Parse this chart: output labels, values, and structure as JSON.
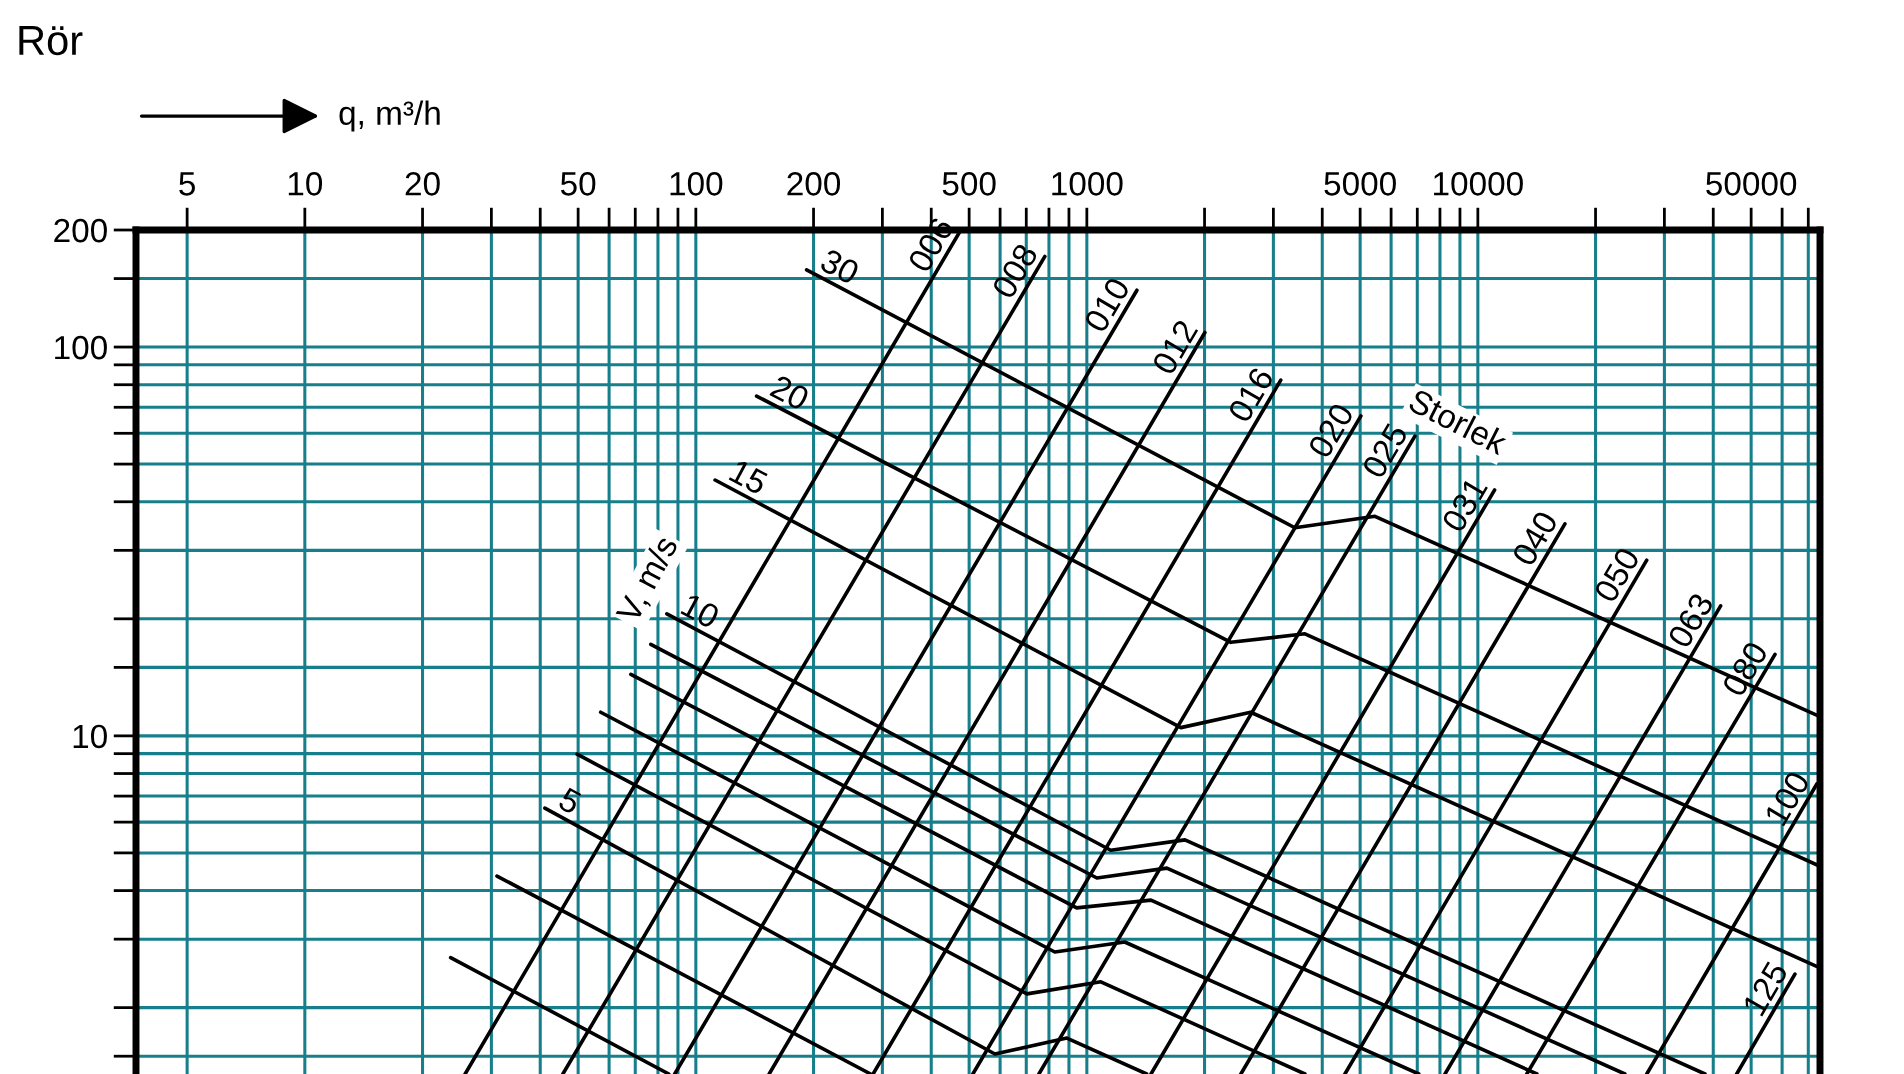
{
  "chart_data": {
    "type": "line",
    "title": "Rör",
    "xlabel": "q, m³/h",
    "log": "xy",
    "grid": true,
    "xlim": [
      3.7,
      75000
    ],
    "ylim": [
      1.35,
      200
    ],
    "xticks": [
      5,
      10,
      20,
      {
        "value": 30,
        "label": null
      },
      {
        "value": 40,
        "label": null
      },
      50,
      {
        "value": 60,
        "label": null
      },
      {
        "value": 70,
        "label": null
      },
      {
        "value": 80,
        "label": null
      },
      {
        "value": 90,
        "label": null
      },
      100,
      200,
      {
        "value": 300,
        "label": null
      },
      {
        "value": 400,
        "label": null
      },
      500,
      {
        "value": 600,
        "label": null
      },
      {
        "value": 700,
        "label": null
      },
      {
        "value": 800,
        "label": null
      },
      {
        "value": 900,
        "label": null
      },
      1000,
      {
        "value": 2000,
        "label": null
      },
      {
        "value": 3000,
        "label": null
      },
      {
        "value": 4000,
        "label": null
      },
      5000,
      {
        "value": 6000,
        "label": null
      },
      {
        "value": 7000,
        "label": null
      },
      {
        "value": 8000,
        "label": null
      },
      {
        "value": 9000,
        "label": null
      },
      10000,
      {
        "value": 20000,
        "label": null
      },
      {
        "value": 30000,
        "label": null
      },
      {
        "value": 40000,
        "label": null
      },
      50000,
      {
        "value": 60000,
        "label": null
      },
      {
        "value": 70000,
        "label": null
      }
    ],
    "yticks": [
      200,
      {
        "value": 150,
        "label": null
      },
      100,
      {
        "value": 90,
        "label": null
      },
      {
        "value": 80,
        "label": null
      },
      {
        "value": 70,
        "label": null
      },
      {
        "value": 60,
        "label": null
      },
      {
        "value": 50,
        "label": null
      },
      {
        "value": 40,
        "label": null
      },
      {
        "value": 30,
        "label": null
      },
      {
        "value": 20,
        "label": null
      },
      {
        "value": 15,
        "label": null
      },
      10,
      {
        "value": 9,
        "label": null
      },
      {
        "value": 8,
        "label": null
      },
      {
        "value": 7,
        "label": null
      },
      {
        "value": 6,
        "label": null
      },
      {
        "value": 5,
        "label": null
      },
      {
        "value": 4,
        "label": null
      },
      {
        "value": 3,
        "label": null
      },
      {
        "value": 2,
        "label": null
      },
      {
        "value": 1.5,
        "label": null
      }
    ],
    "series": [
      {
        "name": "006",
        "color": "#000000",
        "x": [
          25.7,
          476
        ],
        "values": [
          1.35,
          200
        ]
      },
      {
        "name": "008",
        "color": "#000000",
        "x": [
          45.7,
          781
        ],
        "values": [
          1.35,
          171
        ]
      },
      {
        "name": "010",
        "color": "#000000",
        "x": [
          88.3,
          1343
        ],
        "values": [
          1.35,
          140
        ]
      },
      {
        "name": "012",
        "color": "#000000",
        "x": [
          154,
          2004
        ],
        "values": [
          1.35,
          109
        ]
      },
      {
        "name": "016",
        "color": "#000000",
        "x": [
          284,
          3133
        ],
        "values": [
          1.35,
          82.2
        ]
      },
      {
        "name": "020",
        "color": "#000000",
        "x": [
          511,
          5023
        ],
        "values": [
          1.35,
          66.5
        ]
      },
      {
        "name": "025",
        "color": "#000000",
        "x": [
          754,
          6902
        ],
        "values": [
          1.35,
          59.0
        ]
      },
      {
        "name": "031",
        "color": "#000000",
        "x": [
          1459,
          11040
        ],
        "values": [
          1.35,
          42.9
        ]
      },
      {
        "name": "040",
        "color": "#000000",
        "x": [
          2477,
          16700
        ],
        "values": [
          1.35,
          35.1
        ]
      },
      {
        "name": "050",
        "color": "#000000",
        "x": [
          4571,
          27040
        ],
        "values": [
          1.35,
          28.3
        ]
      },
      {
        "name": "063",
        "color": "#000000",
        "x": [
          8241,
          41780
        ],
        "values": [
          1.35,
          21.6
        ]
      },
      {
        "name": "080",
        "color": "#000000",
        "x": [
          13340,
          57540
        ],
        "values": [
          1.35,
          16.2
        ]
      },
      {
        "name": "100",
        "color": "#000000",
        "x": [
          27040,
          73620
        ],
        "values": [
          1.35,
          7.52
        ]
      },
      {
        "name": "125",
        "color": "#000000",
        "x": [
          45920,
          64710
        ],
        "values": [
          1.35,
          2.44
        ]
      },
      {
        "name": "30",
        "color": "#000000",
        "x": [
          192,
          3404,
          5456,
          75000
        ],
        "values": [
          158,
          34.3,
          36.7,
          11.2
        ]
      },
      {
        "name": "20",
        "color": "#000000",
        "x": [
          143,
          2335,
          3612,
          75000
        ],
        "values": [
          74.8,
          17.4,
          18.3,
          4.62
        ]
      },
      {
        "name": "15",
        "color": "#000000",
        "x": [
          112,
          1740,
          2624,
          75000
        ],
        "values": [
          45.5,
          10.5,
          11.5,
          2.53
        ]
      },
      {
        "name": "10",
        "color": "#000000",
        "x": [
          84.3,
          1151,
          1782,
          38100
        ],
        "values": [
          20.6,
          5.08,
          5.4,
          1.35
        ]
      },
      {
        "color": "#000000",
        "x": [
          76.7,
          1061,
          1602,
          23770
        ],
        "values": [
          17.2,
          4.31,
          4.57,
          1.35
        ]
      },
      {
        "color": "#000000",
        "x": [
          68.2,
          942,
          1459,
          14160
        ],
        "values": [
          14.4,
          3.61,
          3.78,
          1.35
        ]
      },
      {
        "color": "#000000",
        "x": [
          57.1,
          828,
          1250,
          7063
        ],
        "values": [
          11.5,
          2.78,
          2.95,
          1.35
        ]
      },
      {
        "color": "#000000",
        "x": [
          49.7,
          703,
          1086,
          3612
        ],
        "values": [
          8.97,
          2.17,
          2.33,
          1.35
        ]
      },
      {
        "name": "5",
        "color": "#000000",
        "x": [
          41.1,
          582,
          889,
          1422
        ],
        "values": [
          6.52,
          1.52,
          1.67,
          1.35
        ]
      },
      {
        "color": "#000000",
        "x": [
          31.0,
          280
        ],
        "values": [
          4.36,
          1.35
        ]
      },
      {
        "color": "#000000",
        "x": [
          23.6,
          85.3
        ],
        "values": [
          2.69,
          1.35
        ]
      }
    ],
    "annotations": [
      "Storlek",
      "V, m/s"
    ]
  }
}
